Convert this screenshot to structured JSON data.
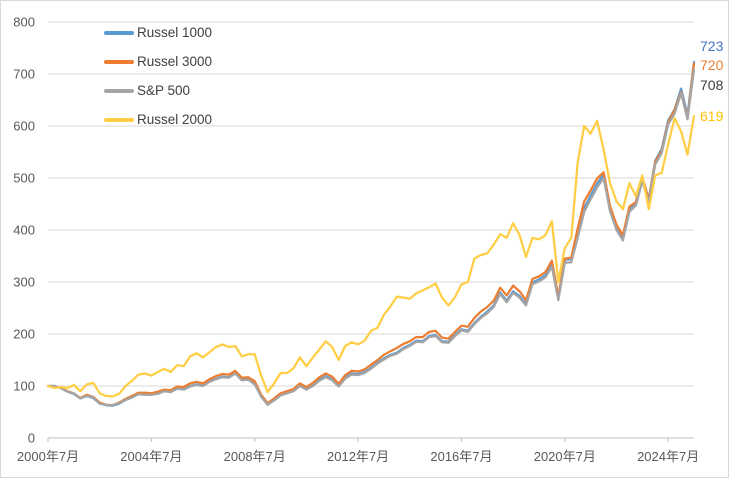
{
  "chart_data": {
    "type": "line",
    "title": "",
    "grid": "horizontal",
    "legend_position": "top-left-vertical",
    "x_axis": {
      "unit": "quarterly points, 2000-07 through 2025-07 (101 points)",
      "tick_labels": [
        "2000年7月",
        "2004年7月",
        "2008年7月",
        "2012年7月",
        "2016年7月",
        "2020年7月",
        "2024年7月"
      ],
      "tick_indices": [
        0,
        16,
        32,
        48,
        64,
        80,
        96
      ]
    },
    "y_axis": {
      "range": [
        0,
        800
      ],
      "ticks": [
        0,
        100,
        200,
        300,
        400,
        500,
        600,
        700,
        800
      ]
    },
    "series": [
      {
        "name": "Russel 1000",
        "color": "#5B9BD5",
        "end_label": "723",
        "end_label_color": "#4472C4",
        "values": [
          100,
          100,
          96,
          89,
          85,
          76,
          81,
          77,
          66,
          63,
          62,
          66,
          73,
          78,
          84,
          84,
          83,
          86,
          90,
          89,
          95,
          94,
          100,
          103,
          101,
          109,
          114,
          118,
          117,
          125,
          112,
          113,
          104,
          80,
          64,
          73,
          83,
          87,
          91,
          101,
          94,
          102,
          112,
          119,
          113,
          100,
          116,
          124,
          123,
          127,
          135,
          145,
          153,
          160,
          164,
          173,
          179,
          187,
          186,
          196,
          198,
          186,
          185,
          198,
          209,
          206,
          221,
          233,
          243,
          255,
          280,
          264,
          282,
          273,
          258,
          299,
          305,
          313,
          334,
          269,
          343,
          344,
          392,
          442,
          466,
          489,
          507,
          442,
          406,
          386,
          441,
          453,
          501,
          459,
          533,
          556,
          611,
          632,
          672,
          621,
          723
        ]
      },
      {
        "name": "Russel 3000",
        "color": "#ED7D31",
        "end_label": "720",
        "end_label_color": "#ED7D31",
        "values": [
          100,
          100,
          96,
          90,
          86,
          77,
          83,
          79,
          68,
          64,
          63,
          68,
          75,
          81,
          87,
          87,
          86,
          89,
          93,
          92,
          99,
          98,
          105,
          108,
          105,
          113,
          119,
          123,
          122,
          129,
          116,
          117,
          109,
          83,
          67,
          76,
          86,
          90,
          94,
          105,
          98,
          106,
          117,
          124,
          118,
          104,
          121,
          129,
          128,
          132,
          141,
          150,
          160,
          167,
          173,
          181,
          186,
          194,
          194,
          204,
          206,
          193,
          191,
          204,
          216,
          214,
          231,
          243,
          252,
          264,
          289,
          274,
          293,
          282,
          265,
          306,
          311,
          319,
          341,
          272,
          345,
          347,
          403,
          455,
          476,
          499,
          511,
          446,
          410,
          390,
          445,
          454,
          501,
          458,
          531,
          552,
          607,
          631,
          665,
          615,
          720
        ]
      },
      {
        "name": "S&P 500",
        "color": "#A5A5A5",
        "end_label": "708",
        "end_label_color": "#404040",
        "values": [
          100,
          100,
          96,
          89,
          86,
          76,
          81,
          78,
          66,
          64,
          63,
          67,
          73,
          78,
          84,
          83,
          83,
          85,
          90,
          88,
          95,
          93,
          99,
          102,
          100,
          108,
          113,
          117,
          116,
          124,
          111,
          112,
          103,
          79,
          64,
          72,
          82,
          86,
          90,
          100,
          93,
          100,
          110,
          117,
          111,
          99,
          114,
          122,
          121,
          125,
          133,
          143,
          151,
          158,
          162,
          171,
          177,
          185,
          184,
          194,
          196,
          184,
          183,
          196,
          207,
          204,
          219,
          231,
          240,
          252,
          277,
          261,
          279,
          270,
          255,
          296,
          301,
          309,
          329,
          265,
          337,
          338,
          385,
          435,
          459,
          482,
          500,
          436,
          400,
          380,
          435,
          447,
          494,
          453,
          526,
          548,
          603,
          624,
          663,
          613,
          708
        ]
      },
      {
        "name": "Russel 2000",
        "color": "#FFCE45",
        "end_label": "619",
        "end_label_color": "#FFC000",
        "values": [
          100,
          96,
          98,
          96,
          102,
          90,
          103,
          106,
          86,
          81,
          80,
          85,
          100,
          110,
          122,
          124,
          120,
          127,
          133,
          127,
          140,
          138,
          157,
          163,
          155,
          165,
          175,
          180,
          175,
          177,
          157,
          161,
          161,
          120,
          88,
          105,
          125,
          125,
          134,
          155,
          138,
          155,
          170,
          186,
          175,
          150,
          177,
          184,
          180,
          187,
          206,
          212,
          237,
          253,
          272,
          270,
          268,
          278,
          284,
          290,
          297,
          270,
          255,
          271,
          295,
          300,
          345,
          352,
          355,
          372,
          392,
          385,
          413,
          390,
          348,
          385,
          382,
          390,
          417,
          300,
          365,
          385,
          530,
          600,
          585,
          610,
          555,
          490,
          455,
          440,
          490,
          465,
          505,
          440,
          505,
          510,
          565,
          615,
          590,
          545,
          619
        ]
      }
    ],
    "style": {
      "gridline_color": "#D9D9D9",
      "axis_line_color": "#BFBFBF",
      "tick_label_color": "#595959",
      "legend_text_color": "#404040",
      "background": "#FFFFFF"
    }
  }
}
